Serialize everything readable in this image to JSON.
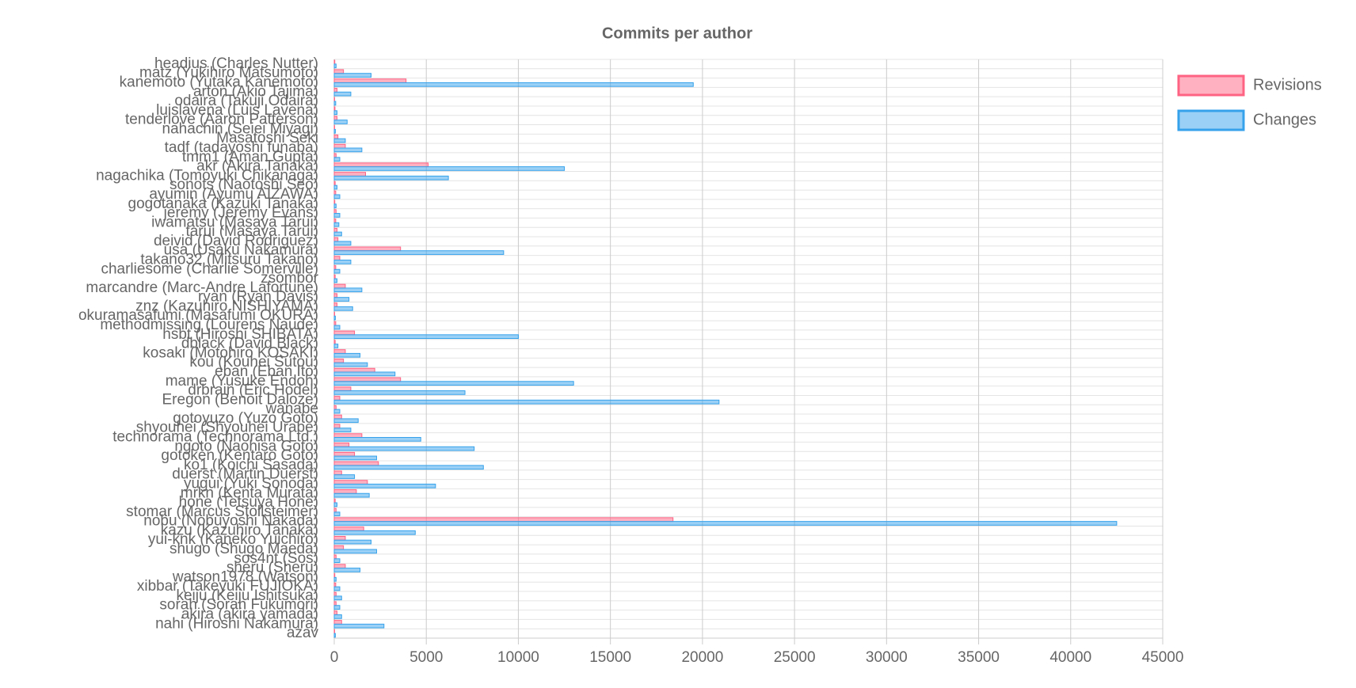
{
  "chart_data": {
    "type": "hbar",
    "title": "Commits per author",
    "categories": [
      "headius (Charles Nutter)",
      "matz (Yukihiro Matsumoto)",
      "kanemoto (Yutaka Kanemoto)",
      "arton (Akio Tajima)",
      "odaira (Takuji Odaira)",
      "luislavena (Luis Lavena)",
      "tenderlove (Aaron Patterson)",
      "nahachin (Seiei Miyagi)",
      "Masatoshi Seki",
      "tadf (tadayoshi funaba)",
      "tmm1 (Aman Gupta)",
      "akr (Akira Tanaka)",
      "nagachika (Tomoyuki Chikanaga)",
      "sonots (Naotoshi Seo)",
      "ayumin (Ayumu AIZAWA)",
      "gogotanaka (Kazuki Tanaka)",
      "jeremy (Jeremy Evans)",
      "iwamatsu (Masaya Tarui)",
      "tarui (Masaya Tarui)",
      "deivid (David Rodriguez)",
      "usa (Usaku Nakamura)",
      "takano32 (Mitsuru Takano)",
      "charliesome (Charlie Somerville)",
      "zsombor",
      "marcandre (Marc-Andre Lafortune)",
      "ryan (Ryan Davis)",
      "znz (Kazuhiro NISHIYAMA)",
      "okuramasafumi (Masafumi OKURA)",
      "methodmissing (Lourens Naude)",
      "hsbt (Hiroshi SHIBATA)",
      "dblack (David Black)",
      "kosaki (Motohiro KOSAKI)",
      "kou (Kouhei Sutou)",
      "eban (Eban Ito)",
      "mame (Yusuke Endoh)",
      "drbrain (Eric Hodel)",
      "Eregon (Benoit Daloze)",
      "wanabe",
      "gotoyuzo (Yuzo Goto)",
      "shyouhei (Shyouhei Urabe)",
      "technorama (Technorama Ltd.)",
      "ngoto (Naohisa Goto)",
      "gotoken (Kentaro Goto)",
      "ko1 (Koichi Sasada)",
      "duerst (Martin Duerst)",
      "yugui (Yuki Sonoda)",
      "mrkn (Kenta Murata)",
      "hone (Tetsuya Hone)",
      "stomar (Marcus Stollsteimer)",
      "nobu (Nobuyoshi Nakada)",
      "kazu (Kazuhiro Tanaka)",
      "yui-knk (Kaneko Yuichiro)",
      "shugo (Shugo Maeda)",
      "sos4nt (Sos)",
      "sheru (Sheru)",
      "watson1978 (Watson)",
      "xibbar (Takeyuki FUJIOKA)",
      "keiju (Keiju Ishitsuka)",
      "sorah (Sorah Fukumori)",
      "akira (akira yamada)",
      "nahi (Hiroshi Nakamura)",
      "azav"
    ],
    "series": [
      {
        "name": "Revisions",
        "color": "rgba(255,99,132,0.5)",
        "border": "rgb(255,99,132)",
        "values": [
          30,
          500,
          3900,
          150,
          20,
          40,
          150,
          20,
          200,
          600,
          100,
          5100,
          1700,
          50,
          80,
          30,
          100,
          80,
          150,
          200,
          3600,
          300,
          80,
          50,
          600,
          150,
          150,
          20,
          80,
          1100,
          50,
          600,
          500,
          2200,
          3600,
          900,
          300,
          100,
          400,
          300,
          1500,
          800,
          1100,
          2400,
          400,
          1800,
          1200,
          50,
          100,
          18400,
          1600,
          600,
          500,
          100,
          600,
          30,
          80,
          100,
          100,
          150,
          400,
          20
        ]
      },
      {
        "name": "Changes",
        "color": "rgba(54,162,235,0.5)",
        "border": "rgb(54,162,235)",
        "values": [
          100,
          2000,
          19500,
          900,
          80,
          150,
          700,
          60,
          600,
          1500,
          300,
          12500,
          6200,
          150,
          300,
          100,
          300,
          250,
          400,
          900,
          9200,
          900,
          300,
          150,
          1500,
          800,
          1000,
          60,
          300,
          10000,
          200,
          1400,
          1800,
          3300,
          13000,
          7100,
          20900,
          300,
          1300,
          900,
          4700,
          7600,
          2300,
          8100,
          1100,
          5500,
          1900,
          150,
          300,
          42500,
          4400,
          2000,
          2300,
          300,
          1400,
          100,
          300,
          400,
          300,
          400,
          2700,
          60
        ]
      }
    ],
    "xlim": [
      0,
      45000
    ],
    "xticks": [
      0,
      5000,
      10000,
      15000,
      20000,
      25000,
      30000,
      35000,
      40000,
      45000
    ],
    "grid": true,
    "legend": "right"
  }
}
